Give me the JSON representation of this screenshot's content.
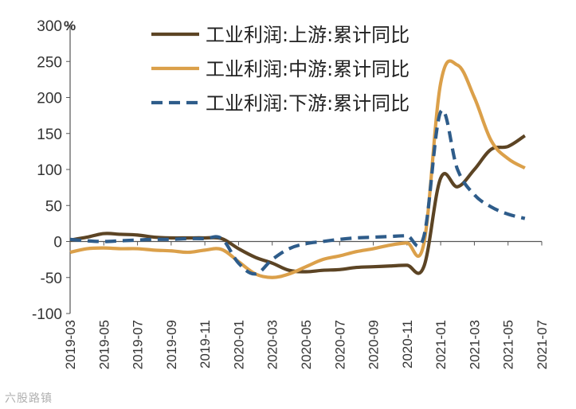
{
  "chart_data": {
    "type": "line",
    "unit": "%",
    "ylim": [
      -100,
      300
    ],
    "yticks": [
      300,
      250,
      200,
      150,
      100,
      50,
      0,
      -50,
      -100
    ],
    "grid": false,
    "legend_position": "top-right",
    "x": [
      "2019-03",
      "2019-04",
      "2019-05",
      "2019-06",
      "2019-07",
      "2019-08",
      "2019-09",
      "2019-10",
      "2019-11",
      "2019-12",
      "2020-01",
      "2020-02",
      "2020-03",
      "2020-04",
      "2020-05",
      "2020-06",
      "2020-07",
      "2020-08",
      "2020-09",
      "2020-10",
      "2020-11",
      "2020-12",
      "2021-01",
      "2021-02",
      "2021-03",
      "2021-04",
      "2021-05",
      "2021-06",
      "2021-07"
    ],
    "x_tick_labels": [
      "2019-03",
      "2019-05",
      "2019-07",
      "2019-09",
      "2019-11",
      "2020-01",
      "2020-03",
      "2020-05",
      "2020-07",
      "2020-09",
      "2020-11",
      "2021-01",
      "2021-03",
      "2021-05",
      "2021-07"
    ],
    "series": [
      {
        "name": "工业利润:上游:累计同比",
        "color": "#5c4424",
        "dash": "solid",
        "values": [
          2,
          6,
          11,
          10,
          9,
          6,
          5,
          5,
          5,
          4,
          -10,
          -22,
          -30,
          -40,
          -42,
          -40,
          -39,
          -36,
          -35,
          -34,
          -33,
          -35,
          88,
          76,
          100,
          128,
          132,
          147,
          null
        ]
      },
      {
        "name": "工业利润:中游:累计同比",
        "color": "#dba04a",
        "dash": "solid",
        "values": [
          -15,
          -10,
          -9,
          -10,
          -10,
          -12,
          -13,
          -15,
          -12,
          -11,
          -28,
          -45,
          -50,
          -45,
          -35,
          -25,
          -20,
          -14,
          -10,
          -5,
          -2,
          -3,
          220,
          245,
          200,
          140,
          115,
          102,
          null
        ]
      },
      {
        "name": "工业利润:下游:累计同比",
        "color": "#2e5c8a",
        "dash": "dashed",
        "values": [
          3,
          1,
          0,
          1,
          2,
          3,
          3,
          4,
          4,
          4,
          -30,
          -45,
          -25,
          -10,
          -3,
          0,
          3,
          5,
          6,
          7,
          8,
          7,
          180,
          100,
          65,
          48,
          38,
          32,
          null
        ]
      }
    ]
  },
  "watermark": "六股路镇"
}
